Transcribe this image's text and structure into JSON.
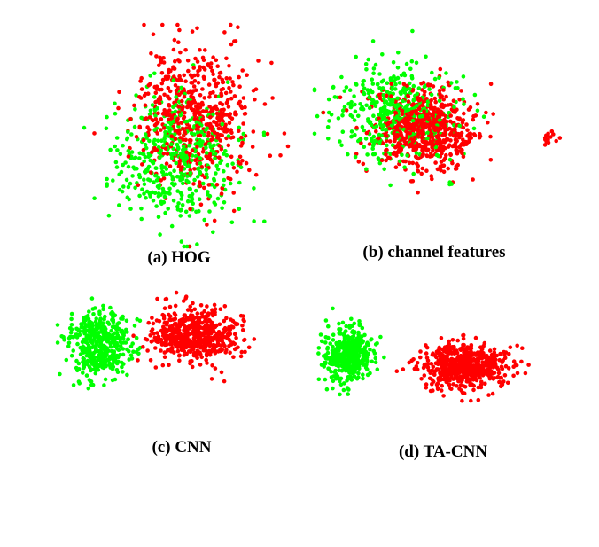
{
  "colors": {
    "class_a": "#ff0000",
    "class_b": "#00ff00",
    "background": "#ffffff"
  },
  "chart_data": [
    {
      "type": "scatter",
      "caption": "(a) HOG",
      "pattern": "red and green points heavily intermixed in one cloud",
      "series": [
        {
          "color": "#ff0000",
          "points": 560,
          "center": [
            0.55,
            0.42
          ],
          "spread": [
            0.26,
            0.3
          ]
        },
        {
          "color": "#00ff00",
          "points": 470,
          "center": [
            0.45,
            0.6
          ],
          "spread": [
            0.27,
            0.28
          ]
        }
      ]
    },
    {
      "type": "scatter",
      "caption": "(b) channel features",
      "pattern": "red and green mostly overlapping, green shifted left and upward, small red cluster at far right",
      "series": [
        {
          "color": "#ff0000",
          "points": 640,
          "center": [
            0.42,
            0.52
          ],
          "spread": [
            0.17,
            0.19
          ]
        },
        {
          "color": "#00ff00",
          "points": 430,
          "center": [
            0.3,
            0.44
          ],
          "spread": [
            0.2,
            0.24
          ]
        }
      ]
    },
    {
      "type": "scatter",
      "caption": "(c) CNN",
      "pattern": "green concentrated on the left, red on the right, overlap in the middle",
      "series": [
        {
          "color": "#ff0000",
          "points": 560,
          "center": [
            0.58,
            0.4
          ],
          "spread": [
            0.17,
            0.13
          ]
        },
        {
          "color": "#00ff00",
          "points": 440,
          "center": [
            0.18,
            0.45
          ],
          "spread": [
            0.12,
            0.17
          ]
        }
      ]
    },
    {
      "type": "scatter",
      "caption": "(d) TA-CNN",
      "pattern": "green cluster on the left and red cluster on the right, mostly separated",
      "series": [
        {
          "color": "#ff0000",
          "points": 620,
          "center": [
            0.58,
            0.58
          ],
          "spread": [
            0.14,
            0.11
          ]
        },
        {
          "color": "#00ff00",
          "points": 440,
          "center": [
            0.16,
            0.52
          ],
          "spread": [
            0.08,
            0.14
          ]
        }
      ]
    }
  ]
}
